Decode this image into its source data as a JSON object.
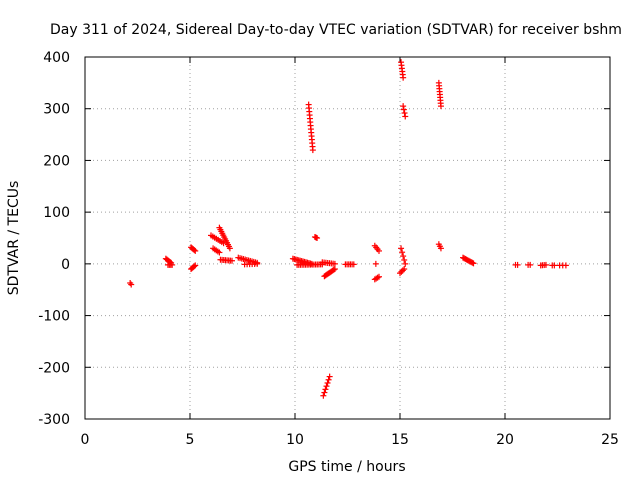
{
  "chart_data": {
    "type": "scatter",
    "title": "Day 311 of 2024, Sidereal Day-to-day VTEC variation (SDTVAR) for receiver bshm",
    "xlabel": "GPS time / hours",
    "ylabel": "SDTVAR / TECUs",
    "xlim": [
      0,
      25
    ],
    "ylim": [
      -300,
      400
    ],
    "xticks": [
      0,
      5,
      10,
      15,
      20,
      25
    ],
    "yticks": [
      -300,
      -200,
      -100,
      0,
      100,
      200,
      300,
      400
    ],
    "xtick_labels": [
      "0",
      "5",
      "10",
      "15",
      "20",
      "25"
    ],
    "ytick_labels": [
      "-300",
      "-200",
      "-100",
      "0",
      "100",
      "200",
      "300",
      "400"
    ],
    "grid": true,
    "marker": "+",
    "marker_color": "#ff0000",
    "segments": [
      {
        "x": [
          2.15,
          2.2
        ],
        "y": [
          -37,
          -40
        ],
        "n": 2
      },
      {
        "x": [
          3.85,
          4.1
        ],
        "y": [
          10,
          2
        ],
        "n": 6
      },
      {
        "x": [
          3.95,
          4.15
        ],
        "y": [
          -2,
          -2
        ],
        "n": 4
      },
      {
        "x": [
          5.05,
          5.25
        ],
        "y": [
          32,
          25
        ],
        "n": 5
      },
      {
        "x": [
          5.05,
          5.25
        ],
        "y": [
          -10,
          -3
        ],
        "n": 5
      },
      {
        "x": [
          6.0,
          6.6
        ],
        "y": [
          55,
          40
        ],
        "n": 8
      },
      {
        "x": [
          6.4,
          6.9
        ],
        "y": [
          70,
          30
        ],
        "n": 12
      },
      {
        "x": [
          6.1,
          6.4
        ],
        "y": [
          30,
          22
        ],
        "n": 5
      },
      {
        "x": [
          6.45,
          7.0
        ],
        "y": [
          8,
          6
        ],
        "n": 8
      },
      {
        "x": [
          7.3,
          8.2
        ],
        "y": [
          12,
          2
        ],
        "n": 12
      },
      {
        "x": [
          7.6,
          8.2
        ],
        "y": [
          -1,
          0
        ],
        "n": 6
      },
      {
        "x": [
          9.9,
          10.8
        ],
        "y": [
          10,
          0
        ],
        "n": 14
      },
      {
        "x": [
          10.1,
          11.3
        ],
        "y": [
          -2,
          -1
        ],
        "n": 16
      },
      {
        "x": [
          10.65,
          10.85
        ],
        "y": [
          308,
          220
        ],
        "n": 14
      },
      {
        "x": [
          10.95,
          11.05
        ],
        "y": [
          52,
          50
        ],
        "n": 3
      },
      {
        "x": [
          11.4,
          11.9
        ],
        "y": [
          -24,
          -10
        ],
        "n": 10
      },
      {
        "x": [
          11.3,
          11.9
        ],
        "y": [
          3,
          0
        ],
        "n": 8
      },
      {
        "x": [
          11.35,
          11.65
        ],
        "y": [
          -255,
          -218
        ],
        "n": 7
      },
      {
        "x": [
          12.4,
          12.8
        ],
        "y": [
          -1,
          -1
        ],
        "n": 6
      },
      {
        "x": [
          13.8,
          14.0
        ],
        "y": [
          35,
          25
        ],
        "n": 4
      },
      {
        "x": [
          13.8,
          14.0
        ],
        "y": [
          -30,
          -25
        ],
        "n": 4
      },
      {
        "x": [
          13.85,
          13.9
        ],
        "y": [
          0,
          0
        ],
        "n": 1
      },
      {
        "x": [
          15.05,
          15.15
        ],
        "y": [
          390,
          360
        ],
        "n": 6
      },
      {
        "x": [
          15.15,
          15.25
        ],
        "y": [
          305,
          285
        ],
        "n": 4
      },
      {
        "x": [
          15.0,
          15.2
        ],
        "y": [
          -18,
          -10
        ],
        "n": 4
      },
      {
        "x": [
          15.05,
          15.25
        ],
        "y": [
          30,
          0
        ],
        "n": 5
      },
      {
        "x": [
          16.85,
          16.95
        ],
        "y": [
          350,
          305
        ],
        "n": 9
      },
      {
        "x": [
          16.85,
          16.95
        ],
        "y": [
          38,
          30
        ],
        "n": 3
      },
      {
        "x": [
          18.0,
          18.5
        ],
        "y": [
          12,
          1
        ],
        "n": 10
      },
      {
        "x": [
          20.5,
          20.6
        ],
        "y": [
          -2,
          -2
        ],
        "n": 2
      },
      {
        "x": [
          21.1,
          21.2
        ],
        "y": [
          -2,
          -2
        ],
        "n": 2
      },
      {
        "x": [
          21.7,
          21.95
        ],
        "y": [
          -3,
          -2
        ],
        "n": 4
      },
      {
        "x": [
          22.25,
          22.35
        ],
        "y": [
          -3,
          -3
        ],
        "n": 2
      },
      {
        "x": [
          22.6,
          22.9
        ],
        "y": [
          -3,
          -3
        ],
        "n": 3
      }
    ]
  }
}
